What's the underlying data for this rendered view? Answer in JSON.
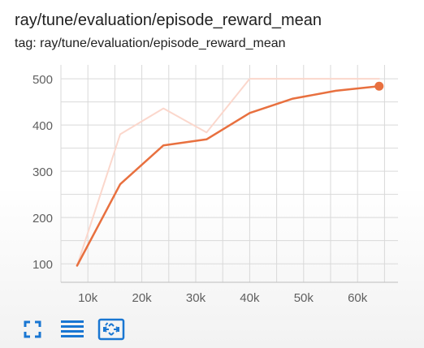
{
  "card": {
    "title": "ray/tune/evaluation/episode_reward_mean",
    "subtitle": "tag: ray/tune/evaluation/episode_reward_mean"
  },
  "colors": {
    "smoothed": "#e8703f",
    "raw": "#fbd7cc",
    "grid": "#d9d9d9",
    "tick_text": "#5f5f5f",
    "toolbar_icon": "#1976d2"
  },
  "toolbar": {
    "icons": [
      "fullscreen-icon",
      "toggle-log-scale-icon",
      "fit-domain-icon"
    ]
  },
  "chart_data": {
    "type": "line",
    "title": "",
    "xlabel": "",
    "ylabel": "",
    "xlim": [
      5000,
      67500
    ],
    "ylim": [
      60,
      530
    ],
    "x_ticks": [
      10000,
      20000,
      30000,
      40000,
      50000,
      60000
    ],
    "x_tick_labels": [
      "10k",
      "20k",
      "30k",
      "40k",
      "50k",
      "60k"
    ],
    "y_ticks": [
      100,
      200,
      300,
      400,
      500
    ],
    "y_tick_labels": [
      "100",
      "200",
      "300",
      "400",
      "500"
    ],
    "grid": true,
    "legend": "none",
    "series": [
      {
        "role": "raw",
        "x": [
          8000,
          16000,
          24000,
          32000,
          40000,
          48000,
          56000,
          64000
        ],
        "y": [
          96,
          380,
          436,
          384,
          500,
          500,
          500,
          500
        ]
      },
      {
        "role": "smoothed",
        "x": [
          8000,
          16000,
          24000,
          32000,
          40000,
          48000,
          56000,
          64000
        ],
        "y": [
          96,
          272,
          356,
          369,
          426,
          457,
          474,
          484
        ]
      }
    ],
    "highlight_point": {
      "x": 64000,
      "y": 484
    }
  }
}
